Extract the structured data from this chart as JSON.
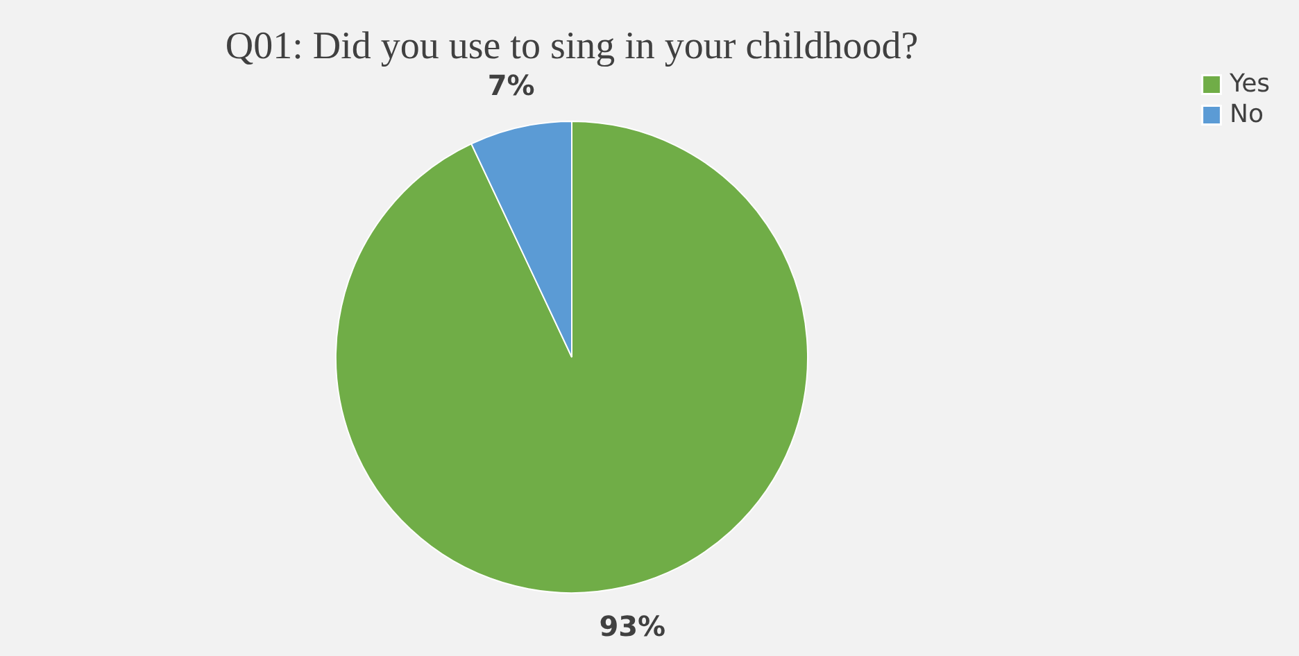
{
  "chart_data": {
    "type": "pie",
    "title": "Q01: Did you use to sing in your childhood?",
    "categories": [
      "Yes",
      "No"
    ],
    "values": [
      93,
      7
    ],
    "colors": [
      "#70ad47",
      "#5b9bd5"
    ],
    "value_labels": [
      "93%",
      "7%"
    ],
    "legend": "right"
  }
}
